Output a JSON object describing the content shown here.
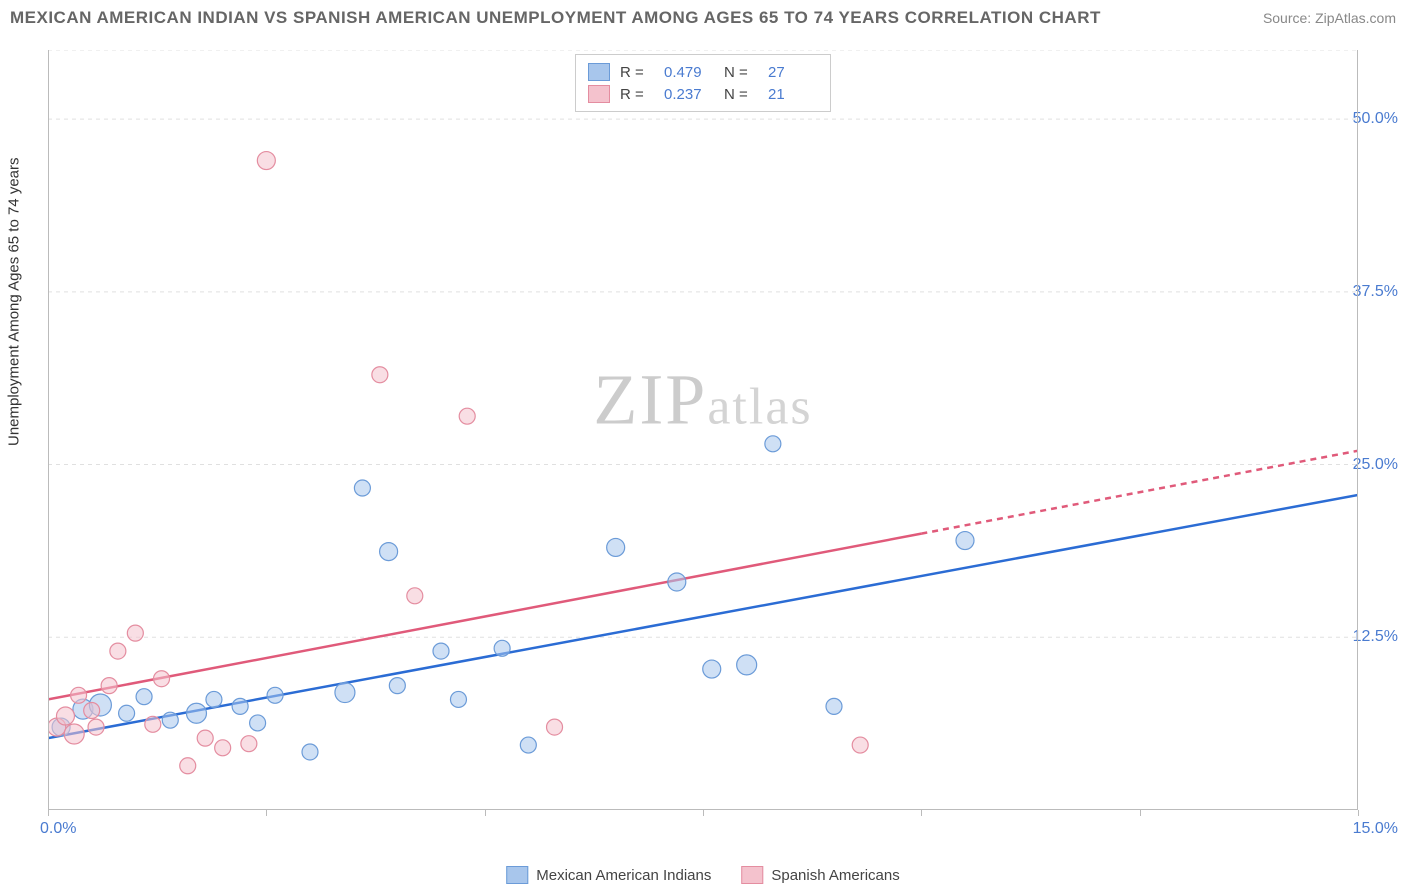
{
  "title": "MEXICAN AMERICAN INDIAN VS SPANISH AMERICAN UNEMPLOYMENT AMONG AGES 65 TO 74 YEARS CORRELATION CHART",
  "source": "Source: ZipAtlas.com",
  "watermark": {
    "zip": "ZIP",
    "atlas": "atlas"
  },
  "chart": {
    "type": "scatter",
    "ylabel": "Unemployment Among Ages 65 to 74 years",
    "xlim": [
      0,
      15
    ],
    "ylim": [
      0,
      55
    ],
    "ytick_labels": [
      "12.5%",
      "25.0%",
      "37.5%",
      "50.0%"
    ],
    "ytick_values": [
      12.5,
      25.0,
      37.5,
      50.0
    ],
    "xtick_labels": {
      "left": "0.0%",
      "right": "15.0%"
    },
    "xtick_mark_values": [
      0,
      2.5,
      5.0,
      7.5,
      10.0,
      12.5,
      15.0
    ],
    "grid_color": "#e0e0e0",
    "axis_color": "#bbbbbb",
    "tick_text_color": "#4a7bd0",
    "background_color": "#ffffff",
    "series": [
      {
        "name": "Mexican American Indians",
        "color": "#a8c6ec",
        "border": "#6b9bd8",
        "r": 0.479,
        "n": 27,
        "trend": {
          "x1": 0,
          "y1": 5.2,
          "x2": 15,
          "y2": 22.8,
          "color": "#2b6cd4",
          "width": 2.5,
          "dash_from_x": null
        },
        "points": [
          {
            "x": 0.15,
            "y": 6.0,
            "r": 9
          },
          {
            "x": 0.4,
            "y": 7.3,
            "r": 10
          },
          {
            "x": 0.6,
            "y": 7.6,
            "r": 11
          },
          {
            "x": 0.9,
            "y": 7.0,
            "r": 8
          },
          {
            "x": 1.1,
            "y": 8.2,
            "r": 8
          },
          {
            "x": 1.4,
            "y": 6.5,
            "r": 8
          },
          {
            "x": 1.7,
            "y": 7.0,
            "r": 10
          },
          {
            "x": 1.9,
            "y": 8.0,
            "r": 8
          },
          {
            "x": 2.2,
            "y": 7.5,
            "r": 8
          },
          {
            "x": 2.4,
            "y": 6.3,
            "r": 8
          },
          {
            "x": 2.6,
            "y": 8.3,
            "r": 8
          },
          {
            "x": 3.0,
            "y": 4.2,
            "r": 8
          },
          {
            "x": 3.4,
            "y": 8.5,
            "r": 10
          },
          {
            "x": 3.6,
            "y": 23.3,
            "r": 8
          },
          {
            "x": 3.9,
            "y": 18.7,
            "r": 9
          },
          {
            "x": 4.0,
            "y": 9.0,
            "r": 8
          },
          {
            "x": 4.5,
            "y": 11.5,
            "r": 8
          },
          {
            "x": 4.7,
            "y": 8.0,
            "r": 8
          },
          {
            "x": 5.2,
            "y": 11.7,
            "r": 8
          },
          {
            "x": 5.5,
            "y": 4.7,
            "r": 8
          },
          {
            "x": 6.5,
            "y": 19.0,
            "r": 9
          },
          {
            "x": 7.2,
            "y": 16.5,
            "r": 9
          },
          {
            "x": 7.6,
            "y": 10.2,
            "r": 9
          },
          {
            "x": 8.0,
            "y": 10.5,
            "r": 10
          },
          {
            "x": 8.3,
            "y": 26.5,
            "r": 8
          },
          {
            "x": 9.0,
            "y": 7.5,
            "r": 8
          },
          {
            "x": 10.5,
            "y": 19.5,
            "r": 9
          }
        ]
      },
      {
        "name": "Spanish Americans",
        "color": "#f4c2cd",
        "border": "#e48da0",
        "r": 0.237,
        "n": 21,
        "trend": {
          "x1": 0,
          "y1": 8.0,
          "x2": 15,
          "y2": 26.0,
          "color": "#e05a7a",
          "width": 2.5,
          "dash_from_x": 10.0
        },
        "points": [
          {
            "x": 0.1,
            "y": 6.0,
            "r": 9
          },
          {
            "x": 0.2,
            "y": 6.8,
            "r": 9
          },
          {
            "x": 0.3,
            "y": 5.5,
            "r": 10
          },
          {
            "x": 0.5,
            "y": 7.2,
            "r": 8
          },
          {
            "x": 0.7,
            "y": 9.0,
            "r": 8
          },
          {
            "x": 0.8,
            "y": 11.5,
            "r": 8
          },
          {
            "x": 1.0,
            "y": 12.8,
            "r": 8
          },
          {
            "x": 1.2,
            "y": 6.2,
            "r": 8
          },
          {
            "x": 1.3,
            "y": 9.5,
            "r": 8
          },
          {
            "x": 1.6,
            "y": 3.2,
            "r": 8
          },
          {
            "x": 1.8,
            "y": 5.2,
            "r": 8
          },
          {
            "x": 2.0,
            "y": 4.5,
            "r": 8
          },
          {
            "x": 2.3,
            "y": 4.8,
            "r": 8
          },
          {
            "x": 2.5,
            "y": 47.0,
            "r": 9
          },
          {
            "x": 3.8,
            "y": 31.5,
            "r": 8
          },
          {
            "x": 4.2,
            "y": 15.5,
            "r": 8
          },
          {
            "x": 4.8,
            "y": 28.5,
            "r": 8
          },
          {
            "x": 5.8,
            "y": 6.0,
            "r": 8
          },
          {
            "x": 9.3,
            "y": 4.7,
            "r": 8
          },
          {
            "x": 0.35,
            "y": 8.3,
            "r": 8
          },
          {
            "x": 0.55,
            "y": 6.0,
            "r": 8
          }
        ]
      }
    ],
    "legend_bottom": [
      {
        "label": "Mexican American Indians",
        "fill": "#a8c6ec",
        "stroke": "#6b9bd8"
      },
      {
        "label": "Spanish Americans",
        "fill": "#f4c2cd",
        "stroke": "#e48da0"
      }
    ]
  }
}
